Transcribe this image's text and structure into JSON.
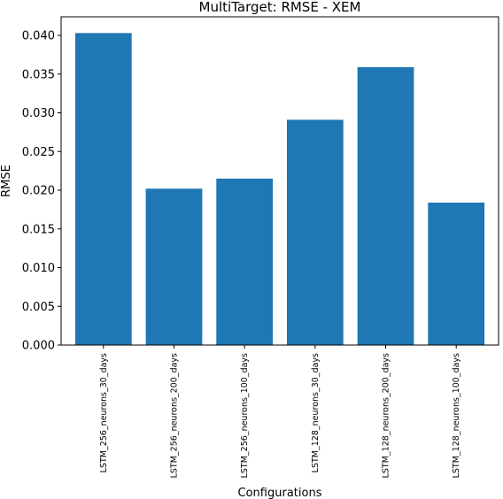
{
  "chart_data": {
    "type": "bar",
    "title": "MultiTarget: RMSE - XEM",
    "xlabel": "Configurations",
    "ylabel": "RMSE",
    "categories": [
      "LSTM_256_neurons_30_days",
      "LSTM_256_neurons_200_days",
      "LSTM_256_neurons_100_days",
      "LSTM_128_neurons_30_days",
      "LSTM_128_neurons_200_days",
      "LSTM_128_neurons_100_days"
    ],
    "values": [
      0.0403,
      0.0202,
      0.0215,
      0.0291,
      0.0359,
      0.0184
    ],
    "ylim": [
      0,
      0.0424
    ],
    "yticks": [
      0.0,
      0.005,
      0.01,
      0.015,
      0.02,
      0.025,
      0.03,
      0.035,
      0.04
    ],
    "ytick_labels": [
      "0.000",
      "0.005",
      "0.010",
      "0.015",
      "0.020",
      "0.025",
      "0.030",
      "0.035",
      "0.040"
    ],
    "bar_color": "#1f77b4",
    "grid": false,
    "legend": "none"
  }
}
